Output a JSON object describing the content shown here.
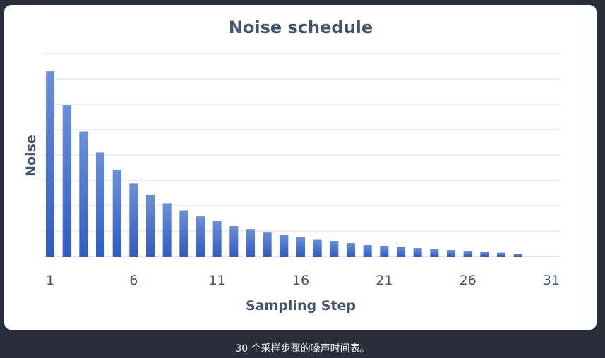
{
  "caption": "30 个采样步骤的噪声时间表。",
  "colors": {
    "background": "#282e3a",
    "card": "#ffffff",
    "bar_top": "#6a8fdc",
    "bar_bottom": "#2f5cc4",
    "gridline": "#d9dde4",
    "text": "#44546a"
  },
  "chart_data": {
    "type": "bar",
    "title": "Noise schedule",
    "xlabel": "Sampling Step",
    "ylabel": "Noise",
    "x": [
      1,
      2,
      3,
      4,
      5,
      6,
      7,
      8,
      9,
      10,
      11,
      12,
      13,
      14,
      15,
      16,
      17,
      18,
      19,
      20,
      21,
      22,
      23,
      24,
      25,
      26,
      27,
      28,
      29,
      30
    ],
    "values": [
      7.3,
      5.97,
      4.93,
      4.1,
      3.42,
      2.88,
      2.44,
      2.1,
      1.82,
      1.58,
      1.39,
      1.22,
      1.08,
      0.97,
      0.86,
      0.76,
      0.68,
      0.61,
      0.53,
      0.47,
      0.42,
      0.38,
      0.33,
      0.29,
      0.25,
      0.22,
      0.18,
      0.15,
      0.1,
      0.0
    ],
    "xticks": [
      "1",
      "6",
      "11",
      "16",
      "21",
      "26",
      "31"
    ],
    "xlim": [
      1,
      31
    ],
    "ylim": [
      0,
      8
    ],
    "grid": true,
    "legend": false
  }
}
